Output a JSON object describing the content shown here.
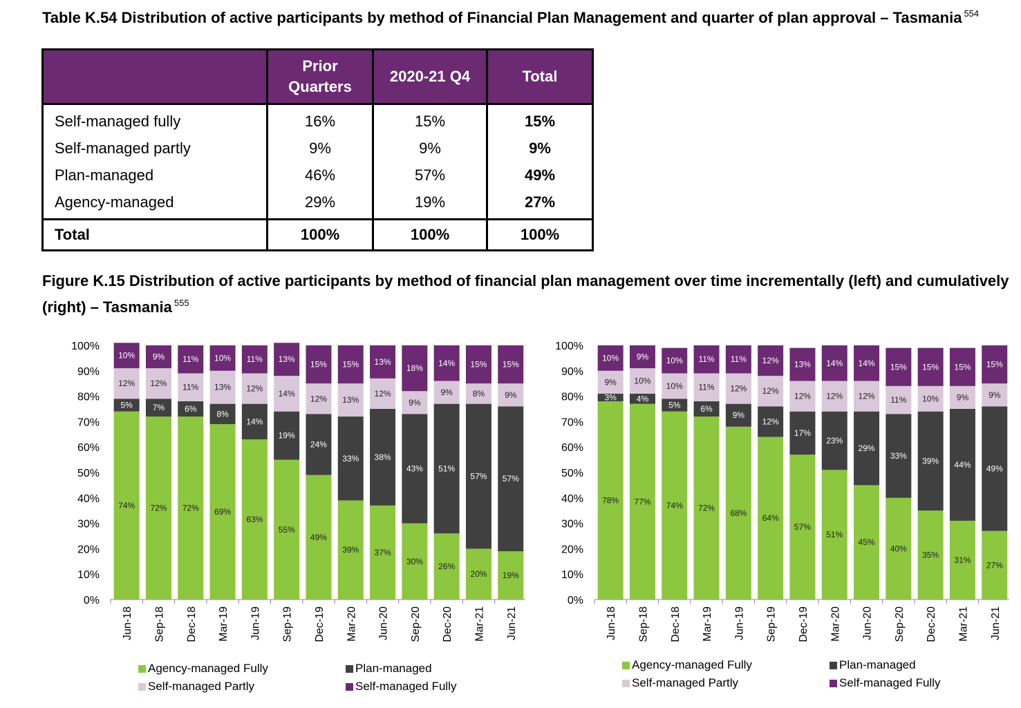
{
  "table": {
    "title": "Table K.54 Distribution of active participants by method of Financial Plan Management and quarter of plan approval – Tasmania",
    "footnote": "554",
    "headers": [
      "",
      "Prior Quarters",
      "2020-21 Q4",
      "Total"
    ],
    "rows": [
      {
        "label": "Self-managed fully",
        "prior": "16%",
        "q4": "15%",
        "total": "15%"
      },
      {
        "label": "Self-managed partly",
        "prior": "9%",
        "q4": "9%",
        "total": "9%"
      },
      {
        "label": "Plan-managed",
        "prior": "46%",
        "q4": "57%",
        "total": "49%"
      },
      {
        "label": "Agency-managed",
        "prior": "29%",
        "q4": "19%",
        "total": "27%"
      }
    ],
    "total_row": {
      "label": "Total",
      "prior": "100%",
      "q4": "100%",
      "total": "100%"
    }
  },
  "figure": {
    "title": "Figure K.15 Distribution of active participants by method of financial plan management over time incrementally (left) and cumulatively (right) – Tasmania",
    "footnote": "555"
  },
  "colors": {
    "agency": "#8dc63f",
    "plan": "#404040",
    "self_partly": "#d9c8da",
    "self_fully": "#6c2a73",
    "header_bg": "#6c2a73"
  },
  "chart_data": [
    {
      "type": "bar",
      "stacked": true,
      "categories": [
        "Jun-18",
        "Sep-18",
        "Dec-18",
        "Mar-19",
        "Jun-19",
        "Sep-19",
        "Dec-19",
        "Mar-20",
        "Jun-20",
        "Sep-20",
        "Dec-20",
        "Mar-21",
        "Jun-21"
      ],
      "ylim": [
        0,
        100
      ],
      "yticks": [
        "0%",
        "10%",
        "20%",
        "30%",
        "40%",
        "50%",
        "60%",
        "70%",
        "80%",
        "90%",
        "100%"
      ],
      "series": [
        {
          "name": "Agency-managed Fully",
          "key": "agency",
          "values": [
            74,
            72,
            72,
            69,
            63,
            55,
            49,
            39,
            37,
            30,
            26,
            20,
            19
          ]
        },
        {
          "name": "Plan-managed",
          "key": "plan",
          "values": [
            5,
            7,
            6,
            8,
            14,
            19,
            24,
            33,
            38,
            43,
            51,
            57,
            57
          ]
        },
        {
          "name": "Self-managed Partly",
          "key": "self_partly",
          "values": [
            12,
            12,
            11,
            13,
            12,
            14,
            12,
            13,
            12,
            9,
            9,
            8,
            9
          ]
        },
        {
          "name": "Self-managed Fully",
          "key": "self_fully",
          "values": [
            10,
            9,
            11,
            10,
            11,
            13,
            15,
            15,
            13,
            18,
            14,
            15,
            15
          ]
        }
      ],
      "legend_position": "bottom"
    },
    {
      "type": "bar",
      "stacked": true,
      "categories": [
        "Jun-18",
        "Sep-18",
        "Dec-18",
        "Mar-19",
        "Jun-19",
        "Sep-19",
        "Dec-19",
        "Mar-20",
        "Jun-20",
        "Sep-20",
        "Dec-20",
        "Mar-21",
        "Jun-21"
      ],
      "ylim": [
        0,
        100
      ],
      "yticks": [
        "0%",
        "10%",
        "20%",
        "30%",
        "40%",
        "50%",
        "60%",
        "70%",
        "80%",
        "90%",
        "100%"
      ],
      "series": [
        {
          "name": "Agency-managed Fully",
          "key": "agency",
          "values": [
            78,
            77,
            74,
            72,
            68,
            64,
            57,
            51,
            45,
            40,
            35,
            31,
            27
          ]
        },
        {
          "name": "Plan-managed",
          "key": "plan",
          "values": [
            3,
            4,
            5,
            6,
            9,
            12,
            17,
            23,
            29,
            33,
            39,
            44,
            49
          ]
        },
        {
          "name": "Self-managed Partly",
          "key": "self_partly",
          "values": [
            9,
            10,
            10,
            11,
            12,
            12,
            12,
            12,
            12,
            11,
            10,
            9,
            9
          ]
        },
        {
          "name": "Self-managed Fully",
          "key": "self_fully",
          "values": [
            10,
            9,
            10,
            11,
            11,
            12,
            13,
            14,
            14,
            15,
            15,
            15,
            15
          ]
        }
      ],
      "legend_position": "bottom"
    }
  ]
}
